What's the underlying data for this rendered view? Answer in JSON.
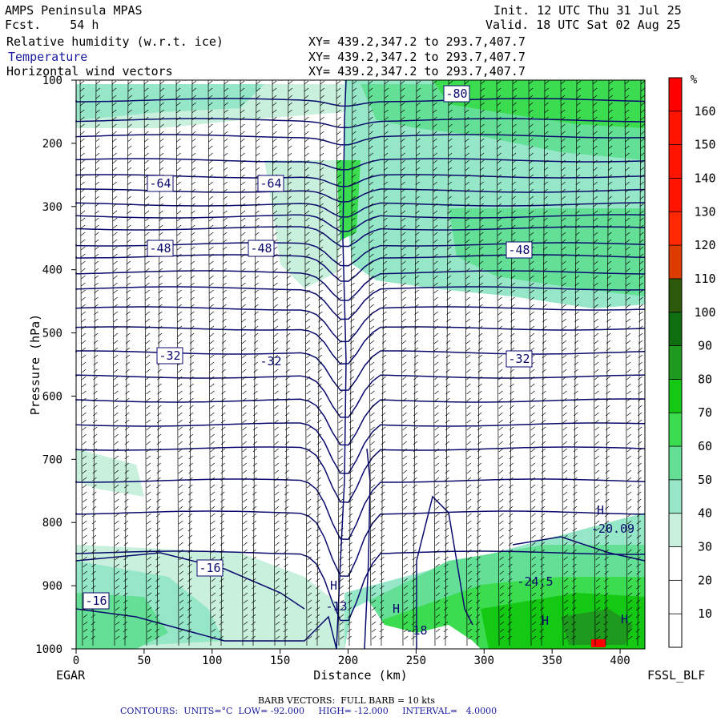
{
  "header": {
    "model": "AMPS Peninsula MPAS",
    "fcst": "Fcst.    54 h",
    "init": "Init. 12 UTC Thu 31 Jul 25",
    "valid": "Valid. 18 UTC Sat 02 Aug 25",
    "fields": [
      {
        "name": "Relative humidity (w.r.t. ice)",
        "xy": "XY= 439.2,347.2 to 293.7,407.7"
      },
      {
        "name": "Temperature",
        "xy": "XY= 439.2,347.2 to 293.7,407.7"
      },
      {
        "name": "Horizontal wind vectors",
        "xy": "XY= 439.2,347.2 to 293.7,407.7"
      }
    ]
  },
  "chart_data": {
    "type": "heatmap",
    "title": "",
    "xlabel": "Distance (km)",
    "ylabel": "Pressure (hPa)",
    "xlim": [
      0,
      420
    ],
    "ylim": [
      1000,
      100
    ],
    "x_ticks": [
      0,
      50,
      100,
      150,
      200,
      250,
      300,
      350,
      400
    ],
    "y_ticks": [
      100,
      200,
      300,
      400,
      500,
      600,
      700,
      800,
      900,
      1000
    ],
    "left_label": "EGAR",
    "right_label": "FSSL_BLF",
    "colorbar": {
      "unit": "%",
      "ticks": [
        10,
        20,
        30,
        40,
        50,
        60,
        70,
        80,
        90,
        100,
        110,
        120,
        130,
        140,
        150,
        160
      ],
      "colors": [
        "#ffffff",
        "#ffffff",
        "#ffffff",
        "#c8f0dc",
        "#96e6c8",
        "#64e096",
        "#3cdc50",
        "#14c814",
        "#1e9b1e",
        "#0f6e0f",
        "#2d5a0a",
        "#dc3c00",
        "#ff2800",
        "#ff1400",
        "#ff1400",
        "#ff1400",
        "#ff0000"
      ]
    },
    "isotherm_labels": [
      "-80",
      "-64",
      "-64",
      "-48",
      "-48",
      "-48",
      "-32",
      "-32",
      "-32",
      "-16",
      "-16",
      "-20.09",
      "-24.5",
      "-13",
      "-18"
    ],
    "highs_lows": [
      "H",
      "H",
      "H",
      "H",
      "H"
    ],
    "barb_note": "BARB VECTORS:  FULL BARB = 10 kts",
    "contour_note": "CONTOURS:  UNITS=°C  LOW= -92.000     HIGH= -12.000     INTERVAL=   4.0000"
  }
}
